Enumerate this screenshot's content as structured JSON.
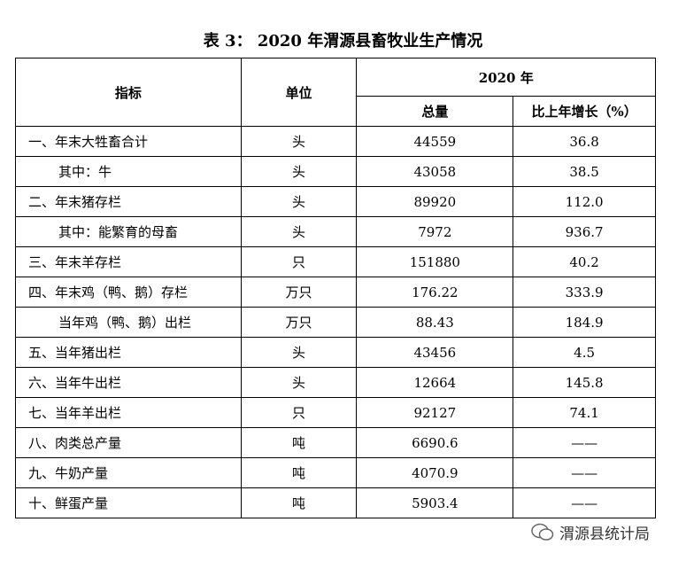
{
  "title": "表 3：  2020 年渭源县畜牧业生产情况",
  "table": {
    "header": {
      "indicator": "指标",
      "unit": "单位",
      "year": "2020 年",
      "total": "总量",
      "growth": "比上年增长（%）"
    },
    "rows": [
      [
        "一、年末大牲畜合计",
        "头",
        "44559",
        "36.8"
      ],
      [
        "其中：牛",
        "头",
        "43058",
        "38.5"
      ],
      [
        "二、年末猪存栏",
        "头",
        "89920",
        "112.0"
      ],
      [
        "其中：能繁育的母畜",
        "头",
        "7972",
        "936.7"
      ],
      [
        "三、年末羊存栏",
        "只",
        "151880",
        "40.2"
      ],
      [
        "四、年末鸡（鸭、鹅）存栏",
        "万只",
        "176.22",
        "333.9"
      ],
      [
        "当年鸡（鸭、鹅）出栏",
        "万只",
        "88.43",
        "184.9"
      ],
      [
        "五、当年猪出栏",
        "头",
        "43456",
        "4.5"
      ],
      [
        "六、当年牛出栏",
        "头",
        "12664",
        "145.8"
      ],
      [
        "七、当年羊出栏",
        "只",
        "92127",
        "74.1"
      ],
      [
        "八、肉类总产量",
        "吨",
        "6690.6",
        "——"
      ],
      [
        "九、牛奶产量",
        "吨",
        "4070.9",
        "——"
      ],
      [
        "十、鲜蛋产量",
        "吨",
        "5903.4",
        "——"
      ]
    ]
  },
  "watermark": "渭源县统计局"
}
